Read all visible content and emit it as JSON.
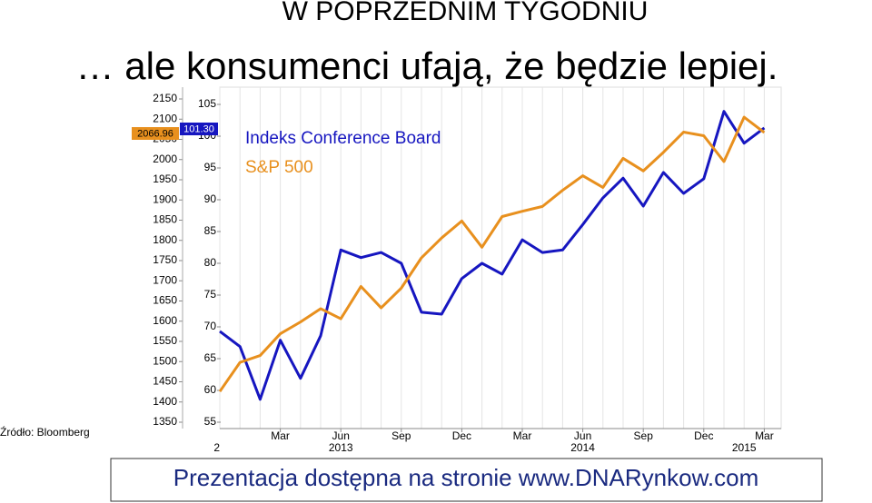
{
  "chart_data": {
    "type": "line",
    "title": "W POPRZEDNIM TYGODNIU",
    "subtitle": "… ale konsumenci ufają, że będzie lepiej.",
    "source": "Źródło: Bloomberg",
    "footer": "Prezentacja dostępna na stronie www.DNARynkow.com",
    "x": [
      "2012-12",
      "2013-01",
      "2013-02",
      "2013-03",
      "2013-04",
      "2013-05",
      "2013-06",
      "2013-07",
      "2013-08",
      "2013-09",
      "2013-10",
      "2013-11",
      "2013-12",
      "2014-01",
      "2014-02",
      "2014-03",
      "2014-04",
      "2014-05",
      "2014-06",
      "2014-07",
      "2014-08",
      "2014-09",
      "2014-10",
      "2014-11",
      "2014-12",
      "2015-01",
      "2015-02",
      "2015-03"
    ],
    "series": [
      {
        "name": "Indeks Conference Board",
        "color": "#1616c0",
        "axis": "y2",
        "last_label": "101.30",
        "values": [
          69.3,
          66.9,
          58.6,
          67.9,
          61.9,
          68.6,
          82.1,
          80.9,
          81.7,
          80.0,
          72.3,
          72.0,
          77.6,
          80.0,
          78.3,
          83.7,
          81.7,
          82.1,
          86.1,
          90.3,
          93.4,
          89.0,
          94.3,
          91.0,
          93.3,
          103.9,
          98.9,
          101.3
        ]
      },
      {
        "name": "S&P 500",
        "color": "#e8901e",
        "last_label": "2066.96",
        "values": [
          1426,
          1498,
          1515,
          1569,
          1598,
          1631,
          1606,
          1686,
          1633,
          1682,
          1757,
          1806,
          1848,
          1783,
          1859,
          1872,
          1884,
          1924,
          1960,
          1931,
          2003,
          1972,
          2018,
          2068,
          2059,
          1995,
          2105,
          2066.96
        ]
      }
    ],
    "ylim": [
      1350,
      2150
    ],
    "yticks": [
      1350,
      1400,
      1450,
      1500,
      1550,
      1600,
      1650,
      1700,
      1750,
      1800,
      1850,
      1900,
      1950,
      2000,
      2050,
      2100,
      2150
    ],
    "y2lim": [
      55,
      105
    ],
    "y2ticks": [
      55,
      60,
      65,
      70,
      75,
      80,
      85,
      90,
      95,
      100,
      105
    ],
    "xticks": [
      {
        "value": "2013-03",
        "label": "Mar"
      },
      {
        "value": "2013-06",
        "label": "Jun"
      },
      {
        "value": "2013-09",
        "label": "Sep"
      },
      {
        "value": "2013-12",
        "label": "Dec"
      },
      {
        "value": "2014-03",
        "label": "Mar"
      },
      {
        "value": "2014-06",
        "label": "Jun"
      },
      {
        "value": "2014-09",
        "label": "Sep"
      },
      {
        "value": "2014-12",
        "label": "Dec"
      },
      {
        "value": "2015-03",
        "label": "Mar"
      }
    ],
    "year_ticks": [
      {
        "value": "2012-12",
        "label": "2"
      },
      {
        "value": "2013-06",
        "label": "2013"
      },
      {
        "value": "2014-06",
        "label": "2014"
      },
      {
        "value": "2015-02",
        "label": "2015"
      }
    ],
    "grid": true
  }
}
